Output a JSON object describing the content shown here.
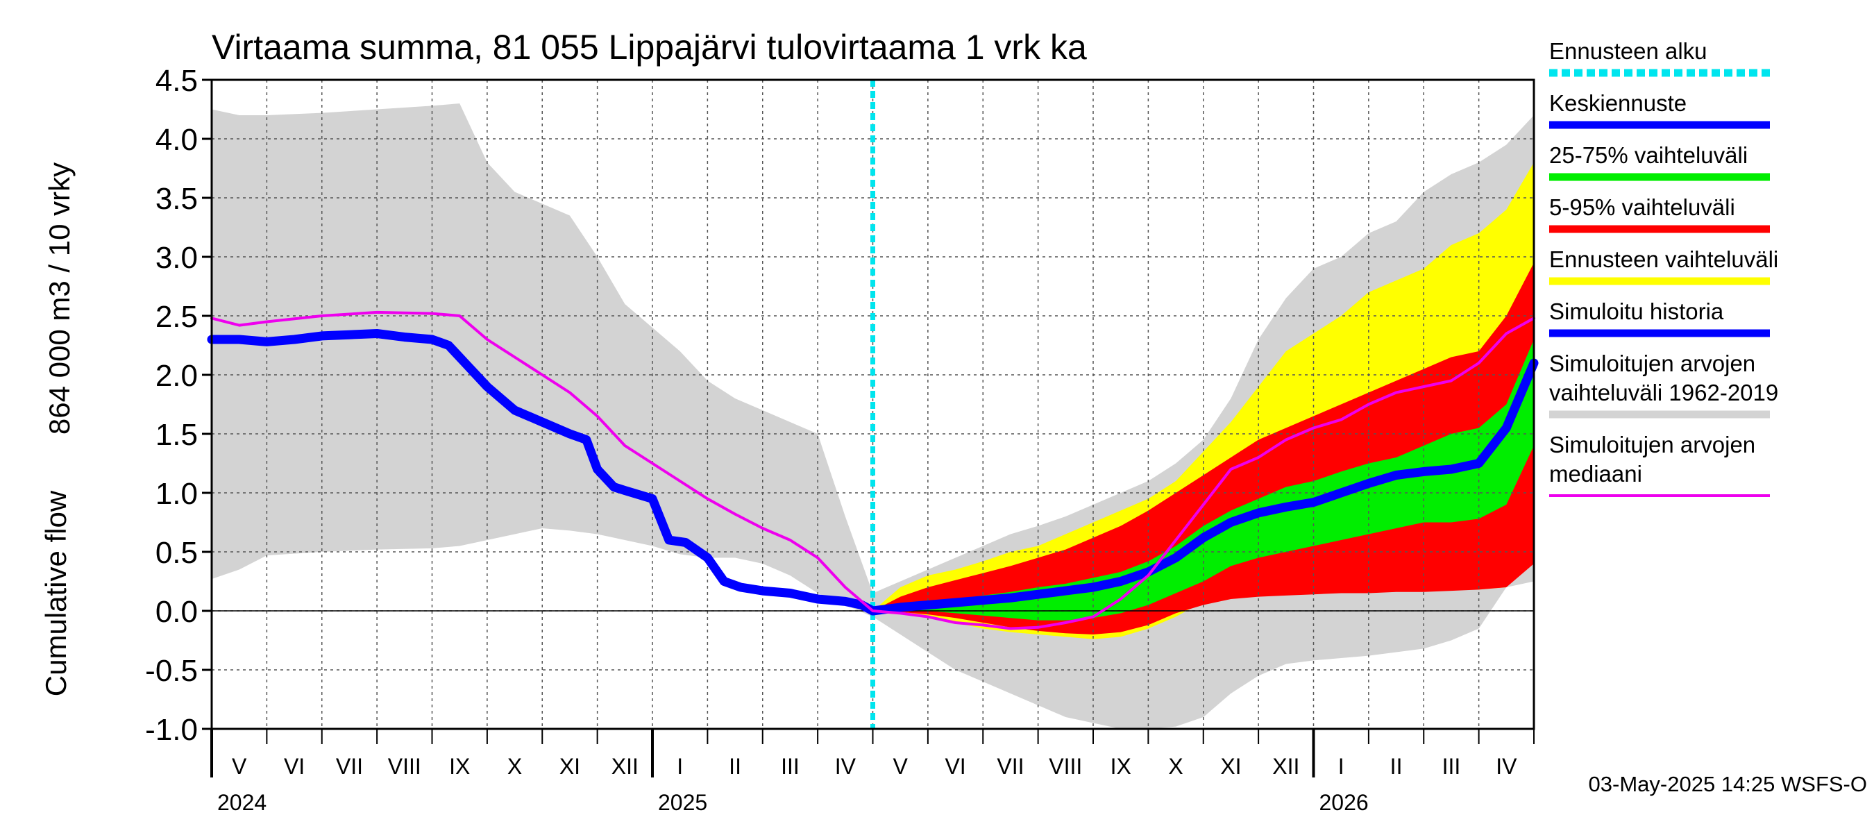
{
  "chart_data": {
    "type": "area",
    "title": "Virtaama summa, 81 055 Lippajärvi tulovirtaama 1 vrk ka",
    "ylabel_line1": "864 000 m3 / 10 vrky",
    "ylabel_line2": "Cumulative flow",
    "footer": "03-May-2025 14:25 WSFS-O",
    "ylim": [
      -1.0,
      4.5
    ],
    "yticks": [
      "4.5",
      "4.0",
      "3.5",
      "3.0",
      "2.5",
      "2.0",
      "1.5",
      "1.0",
      "0.5",
      "0.0",
      "-0.5",
      "-1.0"
    ],
    "month_labels": [
      "V",
      "VI",
      "VII",
      "VIII",
      "IX",
      "X",
      "XI",
      "XII",
      "I",
      "II",
      "III",
      "IV",
      "V",
      "VI",
      "VII",
      "VIII",
      "IX",
      "X",
      "XI",
      "XII",
      "I",
      "II",
      "III",
      "IV"
    ],
    "year_labels": [
      {
        "label": "2024",
        "month_index": 0
      },
      {
        "label": "2025",
        "month_index": 8
      },
      {
        "label": "2026",
        "month_index": 20
      }
    ],
    "forecast_start_month": 12.0,
    "grid": true,
    "legend_position": "right",
    "legend": [
      {
        "label": "Ennusteen alku",
        "color": "#00e5ee",
        "style": "dashed"
      },
      {
        "label": "Keskiennuste",
        "color": "#0000ff",
        "style": "solid"
      },
      {
        "label": "25-75% vaihteluväli",
        "color": "#00ee00",
        "style": "solid"
      },
      {
        "label": "5-95% vaihteluväli",
        "color": "#ff0000",
        "style": "solid"
      },
      {
        "label": "Ennusteen vaihteluväli",
        "color": "#ffff00",
        "style": "solid"
      },
      {
        "label": "Simuloitu historia",
        "color": "#0000ff",
        "style": "solid"
      },
      {
        "label": "Simuloitujen arvojen vaihteluväli 1962-2019",
        "color": "#d3d3d3",
        "style": "solid"
      },
      {
        "label": "Simuloitujen arvojen mediaani",
        "color": "#ee00ee",
        "style": "solid"
      }
    ],
    "series": {
      "sim_range": {
        "x": [
          -0.1,
          0.5,
          1,
          2,
          3,
          4,
          4.5,
          5,
          5.5,
          6,
          6.5,
          7,
          7.5,
          8,
          8.5,
          9,
          9.5,
          10,
          10.5,
          11,
          11.5,
          12,
          12.5,
          13,
          13.5,
          14,
          14.5,
          15,
          15.5,
          16,
          16.5,
          17,
          17.5,
          18,
          18.5,
          19,
          19.5,
          20,
          20.5,
          21,
          21.5,
          22,
          22.5,
          23,
          23.5,
          24.05
        ],
        "upper": [
          4.25,
          4.2,
          4.2,
          4.22,
          4.25,
          4.28,
          4.3,
          3.8,
          3.55,
          3.45,
          3.35,
          3.0,
          2.6,
          2.4,
          2.2,
          1.95,
          1.8,
          1.7,
          1.6,
          1.5,
          0.8,
          0.15,
          0.25,
          0.35,
          0.45,
          0.55,
          0.65,
          0.72,
          0.8,
          0.9,
          1.0,
          1.1,
          1.25,
          1.45,
          1.8,
          2.3,
          2.65,
          2.9,
          3.0,
          3.2,
          3.3,
          3.55,
          3.7,
          3.8,
          3.95,
          4.2
        ],
        "lower": [
          0.27,
          0.35,
          0.47,
          0.5,
          0.52,
          0.53,
          0.55,
          0.6,
          0.65,
          0.7,
          0.68,
          0.65,
          0.6,
          0.55,
          0.48,
          0.45,
          0.45,
          0.4,
          0.3,
          0.15,
          0.05,
          -0.05,
          -0.2,
          -0.35,
          -0.5,
          -0.6,
          -0.7,
          -0.8,
          -0.9,
          -0.95,
          -1.0,
          -1.0,
          -0.98,
          -0.9,
          -0.7,
          -0.55,
          -0.45,
          -0.42,
          -0.4,
          -0.38,
          -0.35,
          -0.32,
          -0.25,
          -0.15,
          0.2,
          0.25
        ]
      },
      "forecast_range": {
        "x": [
          12,
          12.5,
          13,
          13.5,
          14,
          14.5,
          15,
          15.5,
          16,
          16.5,
          17,
          17.5,
          18,
          18.5,
          19,
          19.5,
          20,
          20.5,
          21,
          21.5,
          22,
          22.5,
          23,
          23.5,
          24.05
        ],
        "upper": [
          0.0,
          0.2,
          0.3,
          0.35,
          0.42,
          0.5,
          0.55,
          0.65,
          0.75,
          0.85,
          0.95,
          1.1,
          1.35,
          1.6,
          1.9,
          2.2,
          2.35,
          2.5,
          2.7,
          2.8,
          2.9,
          3.1,
          3.2,
          3.4,
          3.8
        ],
        "lower": [
          0.0,
          -0.02,
          -0.05,
          -0.1,
          -0.15,
          -0.18,
          -0.2,
          -0.22,
          -0.24,
          -0.22,
          -0.15,
          -0.05,
          0.08,
          0.12,
          0.14,
          0.15,
          0.16,
          0.16,
          0.17,
          0.17,
          0.18,
          0.18,
          0.18,
          0.2,
          0.55
        ]
      },
      "p5_95": {
        "x": [
          12,
          12.5,
          13,
          13.5,
          14,
          14.5,
          15,
          15.5,
          16,
          16.5,
          17,
          17.5,
          18,
          18.5,
          19,
          19.5,
          20,
          20.5,
          21,
          21.5,
          22,
          22.5,
          23,
          23.5,
          24.05
        ],
        "upper": [
          0.0,
          0.12,
          0.2,
          0.26,
          0.32,
          0.38,
          0.45,
          0.52,
          0.62,
          0.72,
          0.85,
          1.0,
          1.15,
          1.3,
          1.45,
          1.55,
          1.65,
          1.75,
          1.85,
          1.95,
          2.05,
          2.15,
          2.2,
          2.5,
          2.95
        ],
        "lower": [
          0.0,
          -0.01,
          -0.03,
          -0.06,
          -0.1,
          -0.14,
          -0.17,
          -0.19,
          -0.2,
          -0.18,
          -0.12,
          -0.02,
          0.05,
          0.1,
          0.12,
          0.13,
          0.14,
          0.15,
          0.15,
          0.16,
          0.16,
          0.17,
          0.18,
          0.2,
          0.4
        ]
      },
      "p25_75": {
        "x": [
          12,
          12.5,
          13,
          13.5,
          14,
          14.5,
          15,
          15.5,
          16,
          16.5,
          17,
          17.5,
          18,
          18.5,
          19,
          19.5,
          20,
          20.5,
          21,
          21.5,
          22,
          22.5,
          23,
          23.5,
          24.05
        ],
        "upper": [
          0.0,
          0.05,
          0.08,
          0.1,
          0.13,
          0.16,
          0.2,
          0.23,
          0.28,
          0.33,
          0.42,
          0.55,
          0.72,
          0.85,
          0.95,
          1.05,
          1.1,
          1.18,
          1.25,
          1.3,
          1.4,
          1.5,
          1.55,
          1.75,
          2.3
        ],
        "lower": [
          0.0,
          0.0,
          0.0,
          -0.02,
          -0.04,
          -0.06,
          -0.08,
          -0.08,
          -0.06,
          -0.02,
          0.05,
          0.15,
          0.25,
          0.38,
          0.45,
          0.5,
          0.55,
          0.6,
          0.65,
          0.7,
          0.75,
          0.75,
          0.78,
          0.9,
          1.4
        ]
      },
      "simulated_history": {
        "x": [
          -0.1,
          0.5,
          1,
          1.5,
          2,
          2.5,
          3,
          3.5,
          4,
          4.3,
          4.6,
          5,
          5.5,
          6,
          6.5,
          6.8,
          7,
          7.3,
          7.5,
          8,
          8.3,
          8.6,
          9,
          9.3,
          9.6,
          10,
          10.5,
          11,
          11.5,
          11.8,
          12
        ],
        "values": [
          2.3,
          2.3,
          2.28,
          2.3,
          2.33,
          2.34,
          2.35,
          2.32,
          2.3,
          2.25,
          2.1,
          1.9,
          1.7,
          1.6,
          1.5,
          1.45,
          1.2,
          1.05,
          1.02,
          0.95,
          0.6,
          0.58,
          0.45,
          0.25,
          0.2,
          0.17,
          0.15,
          0.1,
          0.08,
          0.05,
          0.0
        ]
      },
      "mean_forecast": {
        "x": [
          12,
          12.5,
          13,
          13.5,
          14,
          14.5,
          15,
          15.5,
          16,
          16.5,
          17,
          17.5,
          18,
          18.5,
          19,
          19.5,
          20,
          20.5,
          21,
          21.5,
          22,
          22.5,
          23,
          23.5,
          24.05
        ],
        "values": [
          0.0,
          0.03,
          0.05,
          0.07,
          0.09,
          0.11,
          0.14,
          0.17,
          0.2,
          0.25,
          0.33,
          0.45,
          0.62,
          0.75,
          0.83,
          0.88,
          0.92,
          1.0,
          1.08,
          1.15,
          1.18,
          1.2,
          1.25,
          1.55,
          2.1
        ]
      },
      "median": {
        "x": [
          -0.1,
          0.5,
          1,
          2,
          3,
          4,
          4.5,
          5,
          5.5,
          6,
          6.5,
          7,
          7.5,
          8,
          8.5,
          9,
          9.5,
          10,
          10.5,
          11,
          11.5,
          12,
          12.5,
          13,
          13.5,
          14,
          14.5,
          15,
          15.5,
          16,
          16.5,
          17,
          17.5,
          18,
          18.5,
          19,
          19.5,
          20,
          20.5,
          21,
          21.5,
          22,
          22.5,
          23,
          23.5,
          24.05
        ],
        "values": [
          2.48,
          2.42,
          2.45,
          2.5,
          2.53,
          2.52,
          2.5,
          2.3,
          2.15,
          2.0,
          1.85,
          1.65,
          1.4,
          1.25,
          1.1,
          0.95,
          0.82,
          0.7,
          0.6,
          0.45,
          0.2,
          0.0,
          -0.02,
          -0.05,
          -0.1,
          -0.12,
          -0.15,
          -0.14,
          -0.1,
          -0.05,
          0.1,
          0.3,
          0.6,
          0.9,
          1.2,
          1.3,
          1.45,
          1.55,
          1.62,
          1.75,
          1.85,
          1.9,
          1.95,
          2.1,
          2.35,
          2.48
        ]
      }
    }
  }
}
